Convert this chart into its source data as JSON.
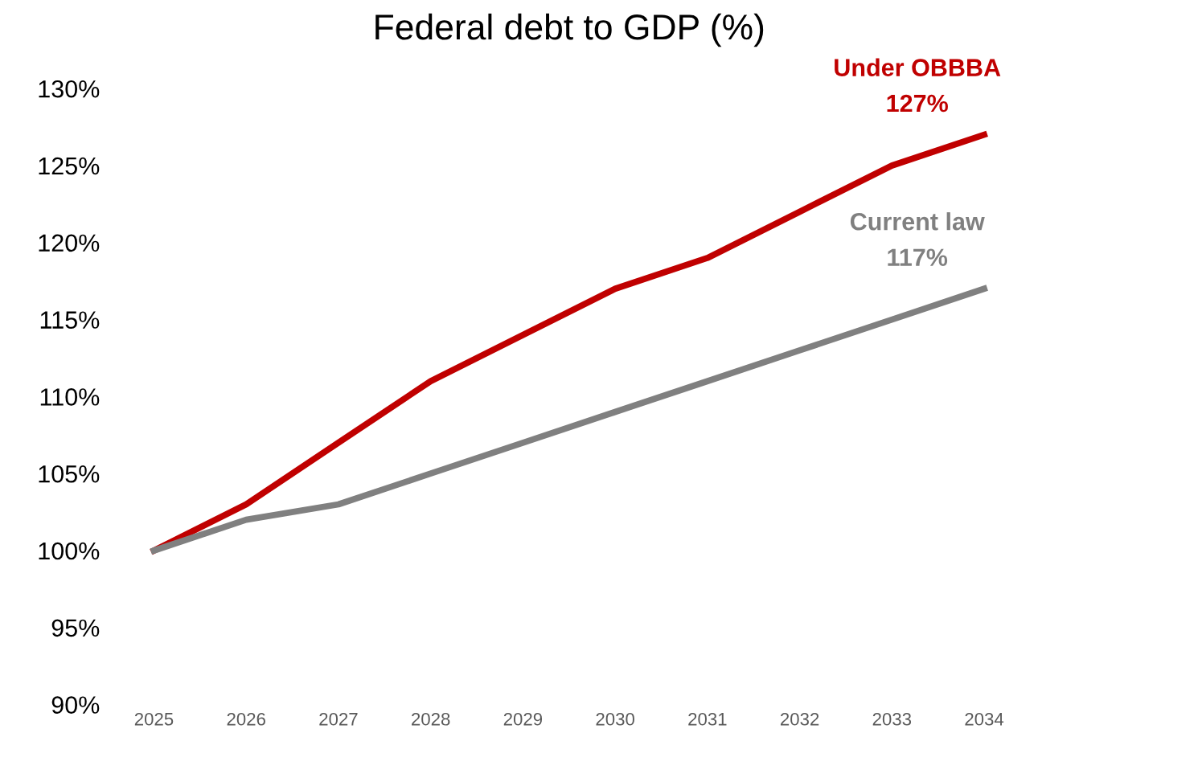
{
  "chart_data": {
    "type": "line",
    "title": "Federal debt to GDP (%)",
    "categories": [
      "2025",
      "2026",
      "2027",
      "2028",
      "2029",
      "2030",
      "2031",
      "2032",
      "2033",
      "2034"
    ],
    "series": [
      {
        "name": "Under OBBBA",
        "color": "#c00000",
        "values": [
          100,
          103,
          107,
          111,
          114,
          117,
          119,
          122,
          125,
          127
        ],
        "value_labels": [
          null,
          null,
          null,
          null,
          null,
          null,
          null,
          null,
          null,
          "127%"
        ]
      },
      {
        "name": "Current law",
        "color": "#808080",
        "values": [
          100,
          102,
          103,
          105,
          107,
          109,
          111,
          113,
          115,
          117
        ],
        "value_labels": [
          null,
          null,
          null,
          null,
          null,
          null,
          null,
          null,
          null,
          "117%"
        ]
      }
    ],
    "ylim": [
      90,
      130
    ],
    "yticks": [
      {
        "value": 90,
        "label": "90%"
      },
      {
        "value": 95,
        "label": "95%"
      },
      {
        "value": 100,
        "label": "100%"
      },
      {
        "value": 105,
        "label": "105%"
      },
      {
        "value": 110,
        "label": "110%"
      },
      {
        "value": 115,
        "label": "115%"
      },
      {
        "value": 120,
        "label": "120%"
      },
      {
        "value": 125,
        "label": "125%"
      },
      {
        "value": 130,
        "label": "130%"
      }
    ],
    "grid": false,
    "legend": false,
    "marker": "none",
    "line_style": "solid"
  }
}
